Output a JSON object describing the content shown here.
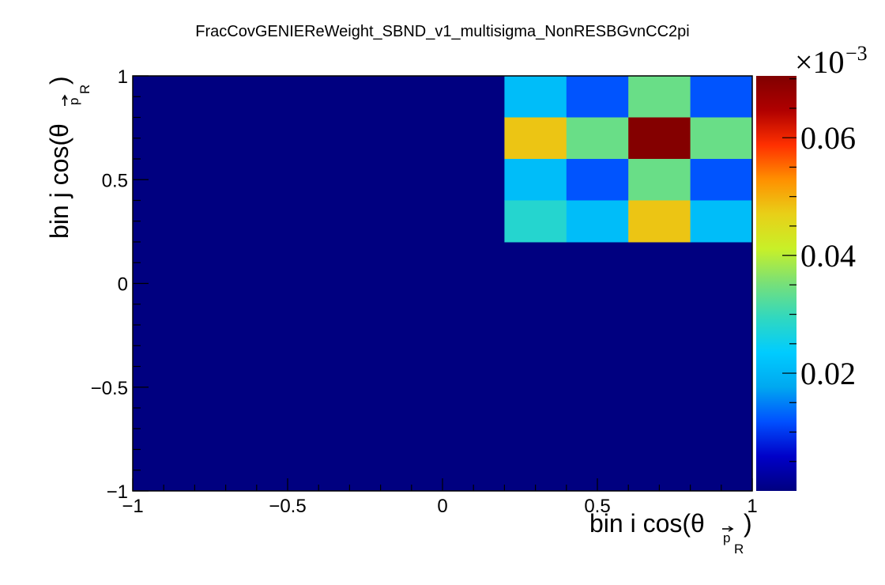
{
  "chart_data": {
    "type": "heatmap",
    "title": "FracCovGENIEReWeight_SBND_v1_multisigma_NonRESBGvnCC2pi",
    "xlabel": {
      "main": "bin i cos(θ",
      "sub_vec": "p",
      "sub_index": "R",
      "close": ")"
    },
    "ylabel": {
      "main": "bin j cos(θ",
      "sub_vec": "p",
      "sub_index": "R",
      "close": ")"
    },
    "xlim": [
      -1,
      1
    ],
    "ylim": [
      -1,
      1
    ],
    "x_ticks": [
      {
        "value": -1,
        "label": "−1"
      },
      {
        "value": -0.5,
        "label": "−0.5"
      },
      {
        "value": 0,
        "label": "0"
      },
      {
        "value": 0.5,
        "label": "0.5"
      },
      {
        "value": 1,
        "label": "1"
      }
    ],
    "y_ticks": [
      {
        "value": -1,
        "label": "−1"
      },
      {
        "value": -0.5,
        "label": "−0.5"
      },
      {
        "value": 0,
        "label": "0"
      },
      {
        "value": 0.5,
        "label": "0.5"
      },
      {
        "value": 1,
        "label": "1"
      }
    ],
    "x_bin_edges": [
      -1,
      0.2,
      0.4,
      0.6,
      0.8,
      1.0
    ],
    "y_bin_edges": [
      -1,
      0.2,
      0.4,
      0.6,
      0.8,
      1.0
    ],
    "background_value": 0.0,
    "cells": [
      {
        "x": [
          0.2,
          0.4
        ],
        "y": [
          0.8,
          1.0
        ],
        "z": 0.021
      },
      {
        "x": [
          0.4,
          0.6
        ],
        "y": [
          0.8,
          1.0
        ],
        "z": 0.012
      },
      {
        "x": [
          0.6,
          0.8
        ],
        "y": [
          0.8,
          1.0
        ],
        "z": 0.034
      },
      {
        "x": [
          0.8,
          1.0
        ],
        "y": [
          0.8,
          1.0
        ],
        "z": 0.012
      },
      {
        "x": [
          0.2,
          0.4
        ],
        "y": [
          0.6,
          0.8
        ],
        "z": 0.048
      },
      {
        "x": [
          0.4,
          0.6
        ],
        "y": [
          0.6,
          0.8
        ],
        "z": 0.034
      },
      {
        "x": [
          0.6,
          0.8
        ],
        "y": [
          0.6,
          0.8
        ],
        "z": 0.07
      },
      {
        "x": [
          0.8,
          1.0
        ],
        "y": [
          0.6,
          0.8
        ],
        "z": 0.034
      },
      {
        "x": [
          0.2,
          0.4
        ],
        "y": [
          0.4,
          0.6
        ],
        "z": 0.021
      },
      {
        "x": [
          0.4,
          0.6
        ],
        "y": [
          0.4,
          0.6
        ],
        "z": 0.012
      },
      {
        "x": [
          0.6,
          0.8
        ],
        "y": [
          0.4,
          0.6
        ],
        "z": 0.034
      },
      {
        "x": [
          0.8,
          1.0
        ],
        "y": [
          0.4,
          0.6
        ],
        "z": 0.012
      },
      {
        "x": [
          0.2,
          0.4
        ],
        "y": [
          0.2,
          0.4
        ],
        "z": 0.028
      },
      {
        "x": [
          0.4,
          0.6
        ],
        "y": [
          0.2,
          0.4
        ],
        "z": 0.021
      },
      {
        "x": [
          0.6,
          0.8
        ],
        "y": [
          0.2,
          0.4
        ],
        "z": 0.048
      },
      {
        "x": [
          0.8,
          1.0
        ],
        "y": [
          0.2,
          0.4
        ],
        "z": 0.021
      }
    ],
    "colorbar": {
      "zlim": [
        0.0,
        0.0705
      ],
      "ticks": [
        {
          "value": 0.02,
          "label": "0.02"
        },
        {
          "value": 0.04,
          "label": "0.04"
        },
        {
          "value": 0.06,
          "label": "0.06"
        }
      ],
      "exponent_base": "×10",
      "exponent": "−3",
      "palette": [
        "#000080",
        "#0000C8",
        "#0050FF",
        "#00A8F0",
        "#00CCFF",
        "#30D8C0",
        "#78E078",
        "#C8F028",
        "#E8D018",
        "#FF9000",
        "#FF3000",
        "#B00000",
        "#800000"
      ]
    },
    "grid": false,
    "legend": "none"
  }
}
